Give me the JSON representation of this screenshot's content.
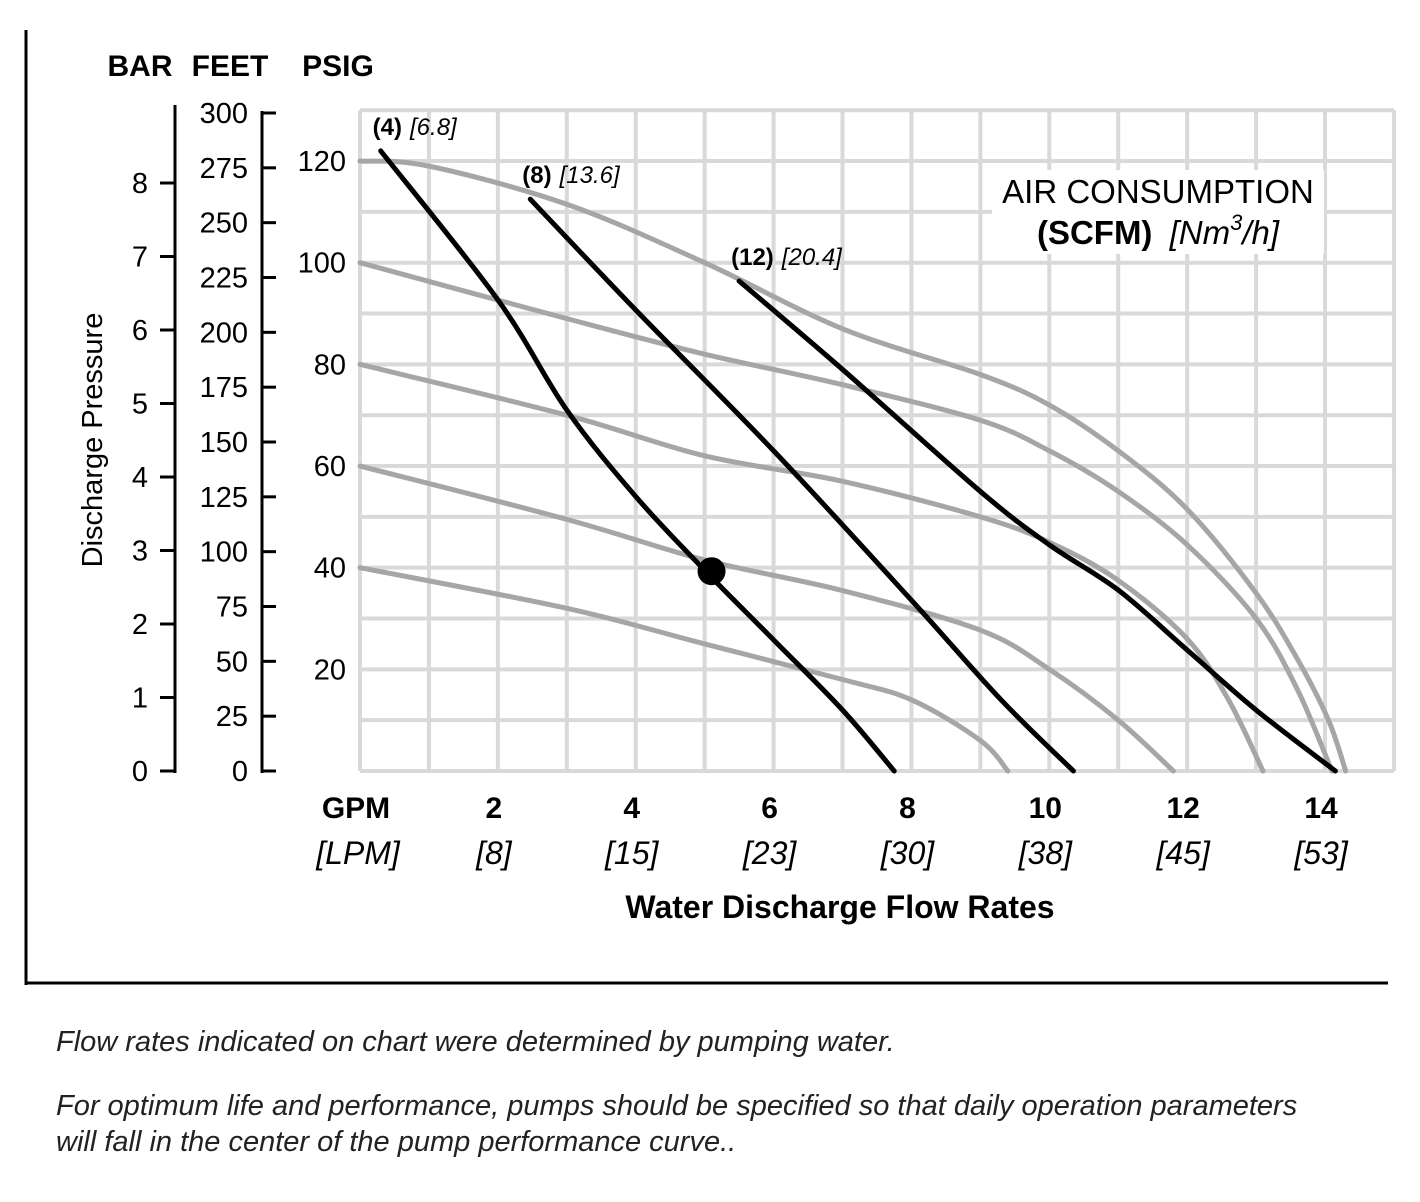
{
  "chart_data": {
    "type": "line",
    "xlabel": "Water Discharge Flow Rates",
    "ylabel": "Discharge Pressure",
    "xlim": [
      0,
      15
    ],
    "ylim": [
      0,
      130
    ],
    "grid": true,
    "x_axis": {
      "unit_primary": "GPM",
      "unit_secondary": "[LPM]",
      "ticks": [
        {
          "value": 2,
          "label": "2",
          "label2": "[8]"
        },
        {
          "value": 4,
          "label": "4",
          "label2": "[15]"
        },
        {
          "value": 6,
          "label": "6",
          "label2": "[23]"
        },
        {
          "value": 8,
          "label": "8",
          "label2": "[30]"
        },
        {
          "value": 10,
          "label": "10",
          "label2": "[38]"
        },
        {
          "value": 12,
          "label": "12",
          "label2": "[45]"
        },
        {
          "value": 14,
          "label": "14",
          "label2": "[53]"
        }
      ]
    },
    "y_axes": [
      {
        "name": "BAR",
        "ticks": [
          "0",
          "1",
          "2",
          "3",
          "4",
          "5",
          "6",
          "7",
          "8"
        ],
        "max_tick": 8
      },
      {
        "name": "FEET",
        "ticks": [
          "0",
          "25",
          "50",
          "75",
          "100",
          "125",
          "150",
          "175",
          "200",
          "225",
          "250",
          "275",
          "300"
        ],
        "max_tick": 300
      },
      {
        "name": "PSIG",
        "ticks": [
          "20",
          "40",
          "60",
          "80",
          "100",
          "120"
        ]
      }
    ],
    "legend_title": {
      "line1": "AIR CONSUMPTION",
      "unit_bold": "(SCFM)",
      "unit_italic_pre": "[Nm",
      "unit_sup": "3",
      "unit_italic_post": "/h]"
    },
    "pressure_curves": [
      {
        "start_psi": 120,
        "color": "#a6a6a6",
        "points": [
          [
            0,
            120
          ],
          [
            1,
            119
          ],
          [
            3,
            111.5
          ],
          [
            5,
            100
          ],
          [
            7,
            87
          ],
          [
            9,
            78
          ],
          [
            10,
            72
          ],
          [
            11,
            63
          ],
          [
            12,
            51.5
          ],
          [
            13,
            35
          ],
          [
            13.6,
            22
          ],
          [
            14.05,
            10
          ],
          [
            14.3,
            0
          ]
        ]
      },
      {
        "start_psi": 100,
        "color": "#a6a6a6",
        "points": [
          [
            0,
            100
          ],
          [
            3,
            89
          ],
          [
            5,
            82
          ],
          [
            7,
            76
          ],
          [
            9,
            69
          ],
          [
            10,
            63
          ],
          [
            11,
            55
          ],
          [
            12,
            44.5
          ],
          [
            13,
            30
          ],
          [
            13.6,
            16
          ],
          [
            14.1,
            0
          ]
        ]
      },
      {
        "start_psi": 80,
        "color": "#a6a6a6",
        "points": [
          [
            0,
            80
          ],
          [
            3,
            70
          ],
          [
            5,
            62
          ],
          [
            7,
            57
          ],
          [
            9,
            50
          ],
          [
            10,
            45
          ],
          [
            11,
            37.5
          ],
          [
            12,
            26
          ],
          [
            12.6,
            14
          ],
          [
            13.1,
            0
          ]
        ]
      },
      {
        "start_psi": 60,
        "color": "#a6a6a6",
        "points": [
          [
            0,
            60
          ],
          [
            3,
            49.5
          ],
          [
            5,
            41.5
          ],
          [
            7,
            35.5
          ],
          [
            9,
            27.7
          ],
          [
            10,
            20
          ],
          [
            11,
            10
          ],
          [
            11.8,
            0
          ]
        ]
      },
      {
        "start_psi": 40,
        "color": "#a6a6a6",
        "points": [
          [
            0,
            40
          ],
          [
            3,
            32
          ],
          [
            5,
            25
          ],
          [
            7,
            18
          ],
          [
            8,
            14
          ],
          [
            9,
            6
          ],
          [
            9.4,
            0
          ]
        ]
      }
    ],
    "air_curves": [
      {
        "label_bold": "(4)",
        "label_italic": "[6.8]",
        "color": "#000000",
        "points": [
          [
            0.3,
            122
          ],
          [
            2,
            92.7
          ],
          [
            3,
            71
          ],
          [
            4,
            54
          ],
          [
            5,
            39.5
          ],
          [
            6,
            25.8
          ],
          [
            7,
            12
          ],
          [
            7.75,
            0
          ]
        ]
      },
      {
        "label_bold": "(8)",
        "label_italic": "[13.6]",
        "color": "#000000",
        "points": [
          [
            2.47,
            112.5
          ],
          [
            4,
            90.7
          ],
          [
            6,
            63
          ],
          [
            8,
            33.6
          ],
          [
            9.3,
            14
          ],
          [
            10.35,
            0
          ]
        ]
      },
      {
        "label_bold": "(12)",
        "label_italic": "[20.4]",
        "color": "#000000",
        "points": [
          [
            5.5,
            96.4
          ],
          [
            7,
            79
          ],
          [
            9,
            55
          ],
          [
            10,
            44.5
          ],
          [
            11,
            35.6
          ],
          [
            12,
            23.8
          ],
          [
            13,
            12
          ],
          [
            14.15,
            0
          ]
        ]
      }
    ],
    "marker": {
      "gpm": 5.1,
      "psig": 39.3
    }
  },
  "notes": [
    "Flow rates indicated on chart were determined by pumping water.",
    "For optimum life and performance, pumps should be specified so that daily operation parameters will fall in the center of the pump performance curve.."
  ]
}
